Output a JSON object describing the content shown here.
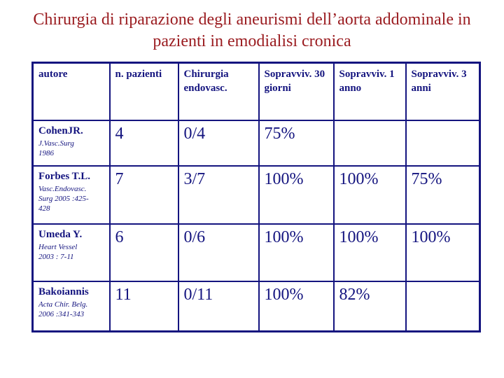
{
  "title": "Chirurgia di riparazione degli aneurismi dell’aorta addominale in pazienti in emodialisi cronica",
  "colors": {
    "title_text": "#9a1b1f",
    "table_ink": "#14147f"
  },
  "table": {
    "headers": [
      "autore",
      "n. pazienti",
      "Chirurgia endovasc.",
      "Sopravviv. 30 giorni",
      "Sopravviv. 1 anno",
      "Sopravviv. 3 anni"
    ],
    "rows": [
      {
        "author": "CohenJR.",
        "citation": "J.Vasc.Surg\n1986",
        "n_pazienti": "4",
        "chirurgia_endovasc": "0/4",
        "sopravviv_30_giorni": "75%",
        "sopravviv_1_anno": "",
        "sopravviv_3_anni": ""
      },
      {
        "author": "Forbes T.L.",
        "citation": "Vasc.Endovasc.\nSurg 2005 :425-\n428",
        "n_pazienti": "7",
        "chirurgia_endovasc": "3/7",
        "sopravviv_30_giorni": "100%",
        "sopravviv_1_anno": "100%",
        "sopravviv_3_anni": "75%"
      },
      {
        "author": "Umeda Y.",
        "citation": "Heart Vessel\n2003 : 7-11",
        "n_pazienti": "6",
        "chirurgia_endovasc": "0/6",
        "sopravviv_30_giorni": "100%",
        "sopravviv_1_anno": "100%",
        "sopravviv_3_anni": "100%"
      },
      {
        "author": "Bakoiannis",
        "citation": "Acta Chir. Belg.\n2006 :341-343",
        "n_pazienti": "11",
        "chirurgia_endovasc": "0/11",
        "sopravviv_30_giorni": "100%",
        "sopravviv_1_anno": "82%",
        "sopravviv_3_anni": ""
      }
    ]
  }
}
